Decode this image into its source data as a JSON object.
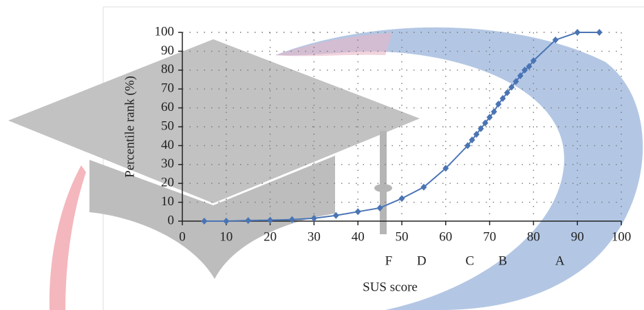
{
  "chart_data": {
    "type": "line",
    "x_label": "SUS score",
    "y_label": "Percentile rank (%)",
    "x": [
      5,
      10,
      15,
      20,
      25,
      30,
      35,
      40,
      45,
      50,
      55,
      60,
      65,
      66,
      67,
      68,
      69,
      70,
      71,
      72,
      73,
      74,
      75,
      76,
      77,
      78,
      79,
      80,
      85,
      90,
      95
    ],
    "series": [
      {
        "color": "#4a74b4",
        "values": [
          0,
          0,
          0.3,
          0.5,
          0.8,
          1.5,
          3,
          5,
          7,
          12,
          18,
          28,
          40,
          43,
          46,
          49,
          52,
          55,
          58,
          62,
          65,
          68,
          71,
          74,
          77,
          80,
          82,
          85,
          96,
          100,
          100
        ]
      }
    ],
    "grade_markers": [
      {
        "label": "F",
        "x": 47
      },
      {
        "label": "D",
        "x": 54.5
      },
      {
        "label": "C",
        "x": 65.5
      },
      {
        "label": "B",
        "x": 73
      },
      {
        "label": "A",
        "x": 86
      }
    ],
    "xlim": [
      0,
      100
    ],
    "xticks": [
      0,
      10,
      20,
      30,
      40,
      50,
      60,
      70,
      80,
      90,
      100
    ],
    "ylim": [
      0,
      100
    ],
    "yticks": [
      0,
      10,
      20,
      30,
      40,
      50,
      60,
      70,
      80,
      90,
      100
    ],
    "grid": true
  }
}
